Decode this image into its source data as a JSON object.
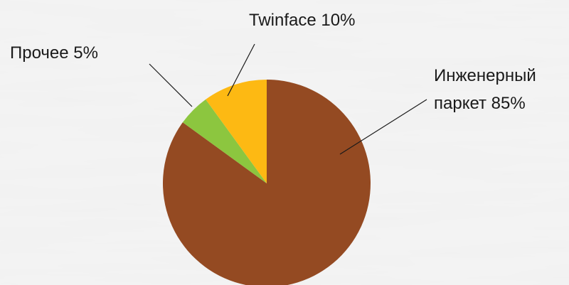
{
  "chart_data": {
    "type": "pie",
    "slices": [
      {
        "label_line1": "Инженерный",
        "label_line2": "паркет 85%",
        "value": 85,
        "color": "#944A22"
      },
      {
        "label_line1": "Прочее 5%",
        "label_line2": "",
        "value": 5,
        "color": "#8CC63F"
      },
      {
        "label_line1": "Twinface 10%",
        "label_line2": "",
        "value": 10,
        "color": "#FDB913"
      }
    ],
    "start": "top",
    "direction": "clockwise"
  },
  "colors": {
    "background": "#F2F2F2"
  }
}
